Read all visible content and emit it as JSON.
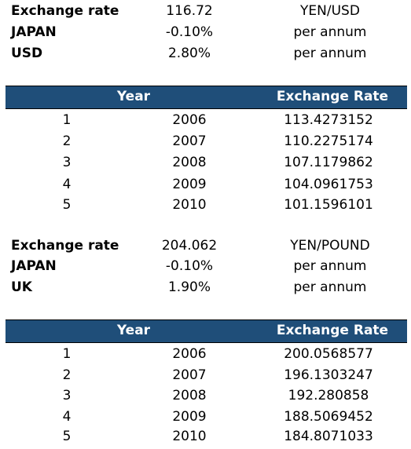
{
  "block1": {
    "rows": [
      {
        "label": "Exchange rate",
        "value": "116.72",
        "unit": "YEN/USD"
      },
      {
        "label": "JAPAN",
        "value": "-0.10%",
        "unit": "per annum"
      },
      {
        "label": "USD",
        "value": "2.80%",
        "unit": "per annum"
      }
    ],
    "table": {
      "header_year": "Year",
      "header_rate": "Exchange Rate",
      "rows": [
        {
          "n": "1",
          "year": "2006",
          "rate": "113.4273152"
        },
        {
          "n": "2",
          "year": "2007",
          "rate": "110.2275174"
        },
        {
          "n": "3",
          "year": "2008",
          "rate": "107.1179862"
        },
        {
          "n": "4",
          "year": "2009",
          "rate": "104.0961753"
        },
        {
          "n": "5",
          "year": "2010",
          "rate": "101.1596101"
        }
      ]
    }
  },
  "block2": {
    "rows": [
      {
        "label": "Exchange rate",
        "value": "204.062",
        "unit": "YEN/POUND"
      },
      {
        "label": "JAPAN",
        "value": "-0.10%",
        "unit": "per annum"
      },
      {
        "label": "UK",
        "value": "1.90%",
        "unit": "per annum"
      }
    ],
    "table": {
      "header_year": "Year",
      "header_rate": "Exchange Rate",
      "rows": [
        {
          "n": "1",
          "year": "2006",
          "rate": "200.0568577"
        },
        {
          "n": "2",
          "year": "2007",
          "rate": "196.1303247"
        },
        {
          "n": "3",
          "year": "2008",
          "rate": "192.280858"
        },
        {
          "n": "4",
          "year": "2009",
          "rate": "188.5069452"
        },
        {
          "n": "5",
          "year": "2010",
          "rate": "184.8071033"
        }
      ]
    }
  },
  "colors": {
    "header_bg": "#1f4e79",
    "header_text": "#ffffff"
  }
}
